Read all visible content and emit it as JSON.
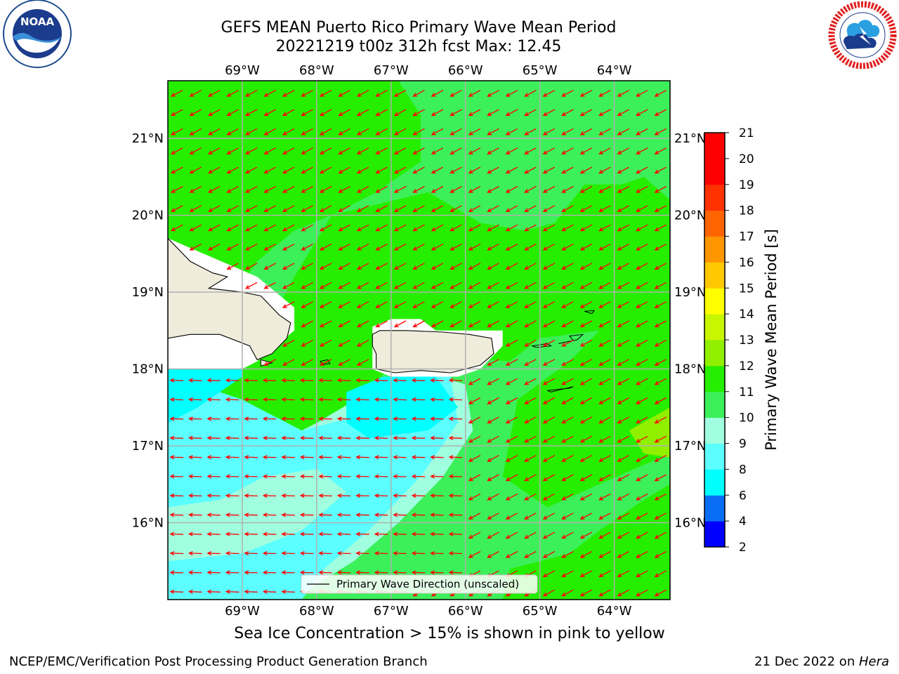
{
  "title": {
    "line1": "GEFS MEAN Puerto Rico Primary Wave Mean Period",
    "line2": "20221219 t00z 312h fcst   Max: 12.45"
  },
  "logos": {
    "left": {
      "icon": "noaa-logo",
      "text": "NOAA",
      "ring_text": "NATIONAL OCEANIC AND ATMOSPHERIC ADMINISTRATION · U.S. DEPARTMENT OF COMMERCE"
    },
    "right": {
      "icon": "nws-logo",
      "ring_text": "NATIONAL WEATHER SERVICE"
    }
  },
  "map": {
    "lon_labels": [
      "69°W",
      "68°W",
      "67°W",
      "66°W",
      "65°W",
      "64°W"
    ],
    "lat_labels": [
      "21°N",
      "20°N",
      "19°N",
      "18°N",
      "17°N",
      "16°N"
    ],
    "lon_range": [
      -70.0,
      -63.25
    ],
    "lat_range": [
      15.0,
      21.75
    ],
    "legend_label": "Primary Wave Direction (unscaled)",
    "arrow_color": "#ff0000",
    "land_color": "#efecdc",
    "dominant_direction": "from northeast (arrows pointing southwest); from east (arrows pointing west) south of Puerto Rico"
  },
  "colorbar": {
    "label": "Primary Wave Mean Period [s]",
    "ticks": [
      "2",
      "4",
      "6",
      "8",
      "9",
      "10",
      "11",
      "12",
      "13",
      "14",
      "15",
      "16",
      "17",
      "18",
      "19",
      "20",
      "21"
    ],
    "colors": [
      "#0000ff",
      "#0a6ef5",
      "#00ffff",
      "#5cffff",
      "#a0ffdf",
      "#3cf05a",
      "#26ee00",
      "#90f000",
      "#c8f500",
      "#ffff00",
      "#ffc800",
      "#ff9600",
      "#ff6400",
      "#ff3200",
      "#ff0000",
      "#ff0000"
    ]
  },
  "chart_data": {
    "type": "heatmap",
    "title": "GEFS MEAN Puerto Rico Primary Wave Mean Period",
    "subtitle": "20221219 t00z 312h fcst   Max: 12.45",
    "variable": "Primary Wave Mean Period",
    "units": "s",
    "max_value": 12.45,
    "color_levels": [
      2,
      4,
      6,
      8,
      9,
      10,
      11,
      12,
      13,
      14,
      15,
      16,
      17,
      18,
      19,
      20,
      21
    ],
    "x_extent_lon": [
      -70.0,
      -63.25
    ],
    "y_extent_lat": [
      15.0,
      21.75
    ],
    "regions": [
      {
        "area": "north and northeast open ocean",
        "value_range": [
          10,
          12
        ]
      },
      {
        "area": "south-central Caribbean south of Puerto Rico",
        "value_range": [
          6,
          9
        ]
      },
      {
        "area": "southwest corner",
        "value_range": [
          8,
          10
        ]
      },
      {
        "area": "southeast near 63.5°W 17°N",
        "value_range": [
          12,
          13
        ]
      }
    ]
  },
  "footer": {
    "note": "Sea Ice Concentration > 15% is shown in pink to yellow",
    "left": "NCEP/EMC/Verification Post Processing Product Generation Branch",
    "right_date": "21 Dec 2022 on ",
    "right_machine": "Hera"
  }
}
